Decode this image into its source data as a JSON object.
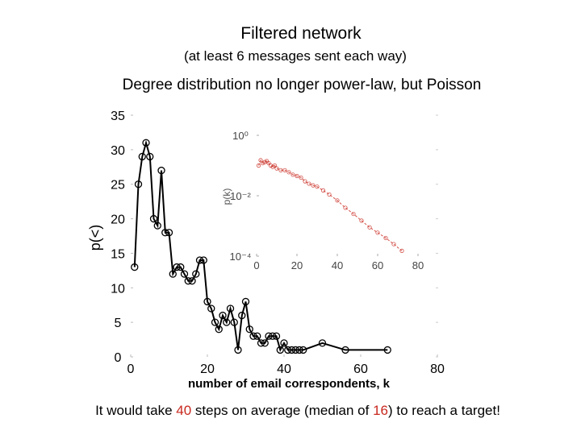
{
  "slide": {
    "title": "Filtered network",
    "subtitle": "(at least 6 messages sent each way)",
    "headline": "Degree distribution no longer power-law, but Poisson",
    "footer": {
      "before": "It would take ",
      "steps": "40",
      "middle": " steps on average (median of ",
      "median": "16",
      "after": ") to reach a target!"
    },
    "highlight_color": "#c8281e"
  },
  "chart_data": [
    {
      "type": "line",
      "title": "",
      "xlabel": "number of email correspondents, k",
      "ylabel": "p(<)",
      "xlim": [
        0,
        80
      ],
      "ylim": [
        0,
        35
      ],
      "xticks": [
        "0",
        "20",
        "40",
        "60",
        "80"
      ],
      "yticks": [
        "0",
        "5",
        "10",
        "15",
        "20",
        "25",
        "30",
        "35"
      ],
      "marker": "circle",
      "color": "#000000",
      "series": [
        {
          "x": [
            1,
            2,
            3,
            4,
            5,
            6,
            7,
            8,
            9,
            10,
            11,
            12,
            13,
            14,
            15,
            16,
            17,
            18,
            19,
            20,
            21,
            22,
            23,
            24,
            25,
            26,
            27,
            28,
            29,
            30,
            31,
            32,
            33,
            34,
            35,
            36,
            37,
            38,
            39,
            40,
            41,
            42,
            43,
            44,
            45,
            50,
            56,
            67
          ],
          "y": [
            13,
            25,
            29,
            31,
            29,
            20,
            19,
            27,
            18,
            18,
            12,
            13,
            13,
            12,
            11,
            11,
            12,
            14,
            14,
            8,
            7,
            5,
            4,
            6,
            5,
            7,
            5,
            1,
            6,
            8,
            4,
            3,
            3,
            2,
            2,
            3,
            3,
            3,
            1,
            2,
            1,
            1,
            1,
            1,
            1,
            2,
            1,
            1
          ]
        }
      ]
    },
    {
      "type": "line",
      "title": "",
      "xlabel": "k",
      "ylabel": "p(k)",
      "xlim": [
        0,
        80
      ],
      "ylim": [
        0.0001,
        1
      ],
      "yscale": "log",
      "xticks": [
        "0",
        "20",
        "40",
        "60",
        "80"
      ],
      "yticks": [
        "10⁰",
        "10⁻²",
        "10⁻⁴"
      ],
      "color": "#c8281e",
      "linestyle": "dashed",
      "series": [
        {
          "x": [
            1,
            2,
            3,
            4,
            5,
            6,
            7,
            8,
            9,
            10,
            12,
            14,
            16,
            18,
            20,
            22,
            24,
            26,
            28,
            30,
            33,
            36,
            40,
            44,
            48,
            52,
            56,
            60,
            64,
            68,
            72
          ],
          "y": [
            0.1,
            0.15,
            0.12,
            0.13,
            0.14,
            0.12,
            0.1,
            0.09,
            0.1,
            0.08,
            0.07,
            0.07,
            0.06,
            0.05,
            0.045,
            0.04,
            0.03,
            0.025,
            0.022,
            0.02,
            0.015,
            0.011,
            0.007,
            0.004,
            0.0025,
            0.0015,
            0.0009,
            0.0006,
            0.0004,
            0.00025,
            0.00015
          ]
        }
      ]
    }
  ]
}
